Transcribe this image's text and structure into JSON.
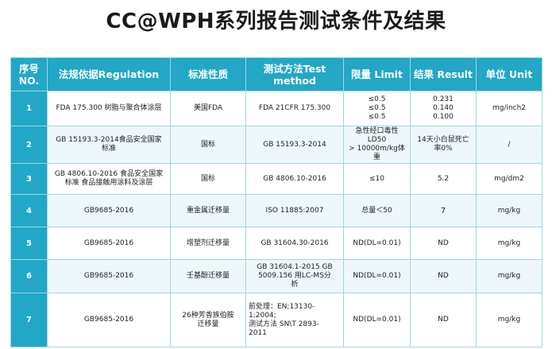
{
  "title": "CC@WPH系列报告测试条件及结果",
  "colors": {
    "header_bg": "#22a7c6",
    "header_text": "#ffffff",
    "border": "#9fd6e3"
  },
  "headers": {
    "no": "序号\nNO.",
    "regulation": "法规依据Regulation",
    "standard_type": "标准性质",
    "test_method": "测试方法Test\nmethod",
    "limit": "限量 Limit",
    "result": "结果 Result",
    "unit": "单位 Unit"
  },
  "rows": [
    {
      "no": "1",
      "regulation": "FDA 175.300 树脂与聚合体涂层",
      "standard_type": "美国FDA",
      "test_method": "FDA 21CFR 175.300",
      "limit": "≤0.5\n≤0.5\n≤0.5",
      "result": "0.231\n0.140\n0.100",
      "unit": "mg/inch2"
    },
    {
      "no": "2",
      "regulation": "GB 15193.3-2014食品安全国家\n标准",
      "standard_type": "国标",
      "test_method": "GB 15193.3-2014",
      "limit": "急性经口毒性LD50\n> 10000m/kg体重",
      "result": "14天小白鼠死亡\n率0%",
      "unit": "/"
    },
    {
      "no": "3",
      "regulation": "GB 4806.10-2016 食品安全国家\n标准 食品接触用涂料及涂层",
      "standard_type": "国标",
      "test_method": "GB 4806.10-2016",
      "limit": "≤10",
      "result": "5.2",
      "unit": "mg/dm2"
    },
    {
      "no": "4",
      "regulation": "GB9685-2016",
      "standard_type": "重金属迁移量",
      "test_method": "ISO 11885:2007",
      "limit": "总量＜50",
      "result": "7",
      "unit": "mg/kg"
    },
    {
      "no": "5",
      "regulation": "GB9685-2016",
      "standard_type": "增塑剂迁移量",
      "test_method": "GB 31604.30-2016",
      "limit": "ND(DL=0.01)",
      "result": "ND",
      "unit": "mg/kg"
    },
    {
      "no": "6",
      "regulation": "GB9685-2016",
      "standard_type": "壬基酚迁移量",
      "test_method": "GB 31604.1-2015 GB\n5009.156 用LC-MS分\n析",
      "limit": "ND(DL=0.01)",
      "result": "ND",
      "unit": "mg/kg"
    },
    {
      "no": "7",
      "regulation": "GB9685-2016",
      "standard_type": "26种芳香族伯胺\n迁移量",
      "test_method": "前处理：EN;13130-\n1;2004;\n测试方法 SN\\T 2893-\n2011",
      "limit": "ND(DL=0.01)",
      "result": "ND",
      "unit": "mg/kg"
    }
  ]
}
